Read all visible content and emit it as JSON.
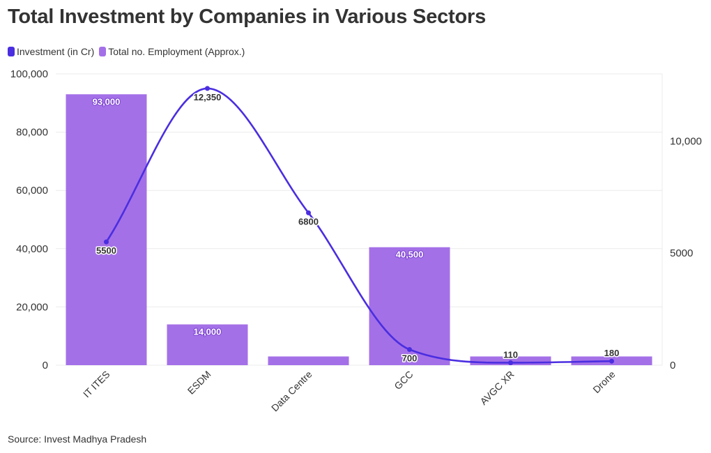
{
  "header": {
    "title": "Total Investment by Companies in Various Sectors"
  },
  "footer": {
    "source": "Source: Invest Madhya Pradesh"
  },
  "colors": {
    "bar": "#a470e8",
    "line": "#4a2ee0",
    "grid": "#ebebeb"
  },
  "chart_data": {
    "type": "bar",
    "title": "Total Investment by Companies in Various Sectors",
    "categories": [
      "IT ITES",
      "ESDM",
      "Data Centre",
      "GCC",
      "AVGC XR",
      "Drone"
    ],
    "series": [
      {
        "name": "Investment (in Cr)",
        "type": "line",
        "axis": "right",
        "values": [
          5500,
          12350,
          6800,
          700,
          110,
          180
        ],
        "labels": [
          "5500",
          "12,350",
          "6800",
          "700",
          "110",
          "180"
        ]
      },
      {
        "name": "Total no. Employment (Approx.)",
        "type": "bar",
        "axis": "left",
        "values": [
          93000,
          14000,
          3000,
          40500,
          3000,
          3000
        ],
        "labels": [
          "93,000",
          "14,000",
          "",
          "40,500",
          "",
          ""
        ]
      }
    ],
    "y_left": {
      "ylim": [
        0,
        100000
      ],
      "ticks": [
        0,
        20000,
        40000,
        60000,
        80000,
        100000
      ],
      "tick_labels": [
        "0",
        "20,000",
        "40,000",
        "60,000",
        "80,000",
        "100,000"
      ]
    },
    "y_right": {
      "ylim": [
        0,
        13000
      ],
      "ticks": [
        0,
        5000,
        10000
      ],
      "tick_labels": [
        "0",
        "5000",
        "10,000"
      ]
    },
    "legend": "top-left",
    "grid": true
  }
}
